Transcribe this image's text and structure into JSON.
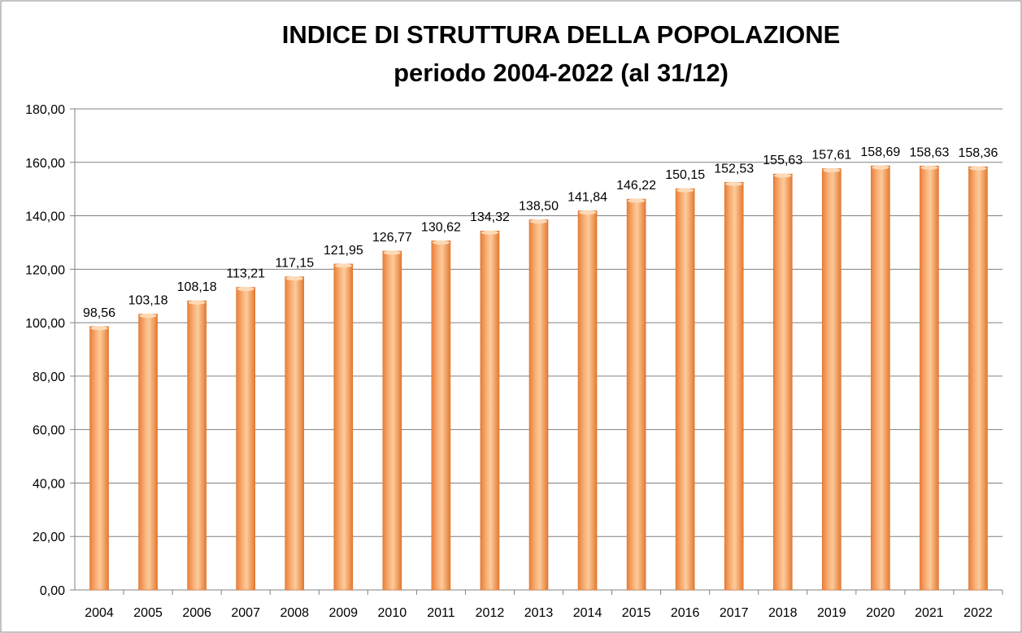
{
  "chart_data": {
    "type": "bar",
    "title": "INDICE DI STRUTTURA DELLA POPOLAZIONE",
    "subtitle": "periodo 2004-2022 (al 31/12)",
    "xlabel": "",
    "ylabel": "",
    "ylim": [
      0,
      180
    ],
    "yticks": [
      0,
      20,
      40,
      60,
      80,
      100,
      120,
      140,
      160,
      180
    ],
    "ytick_labels": [
      "0,00",
      "20,00",
      "40,00",
      "60,00",
      "80,00",
      "100,00",
      "120,00",
      "140,00",
      "160,00",
      "180,00"
    ],
    "grid": true,
    "categories": [
      "2004",
      "2005",
      "2006",
      "2007",
      "2008",
      "2009",
      "2010",
      "2011",
      "2012",
      "2013",
      "2014",
      "2015",
      "2016",
      "2017",
      "2018",
      "2019",
      "2020",
      "2021",
      "2022"
    ],
    "values": [
      98.56,
      103.18,
      108.18,
      113.21,
      117.15,
      121.95,
      126.77,
      130.62,
      134.32,
      138.5,
      141.84,
      146.22,
      150.15,
      152.53,
      155.63,
      157.61,
      158.69,
      158.63,
      158.36
    ],
    "value_labels": [
      "98,56",
      "103,18",
      "108,18",
      "113,21",
      "117,15",
      "121,95",
      "126,77",
      "130,62",
      "134,32",
      "138,50",
      "141,84",
      "146,22",
      "150,15",
      "152,53",
      "155,63",
      "157,61",
      "158,69",
      "158,63",
      "158,36"
    ],
    "bar_color": "#F79646",
    "bar_highlight": "#FDD9B5",
    "grid_color": "#808080"
  }
}
